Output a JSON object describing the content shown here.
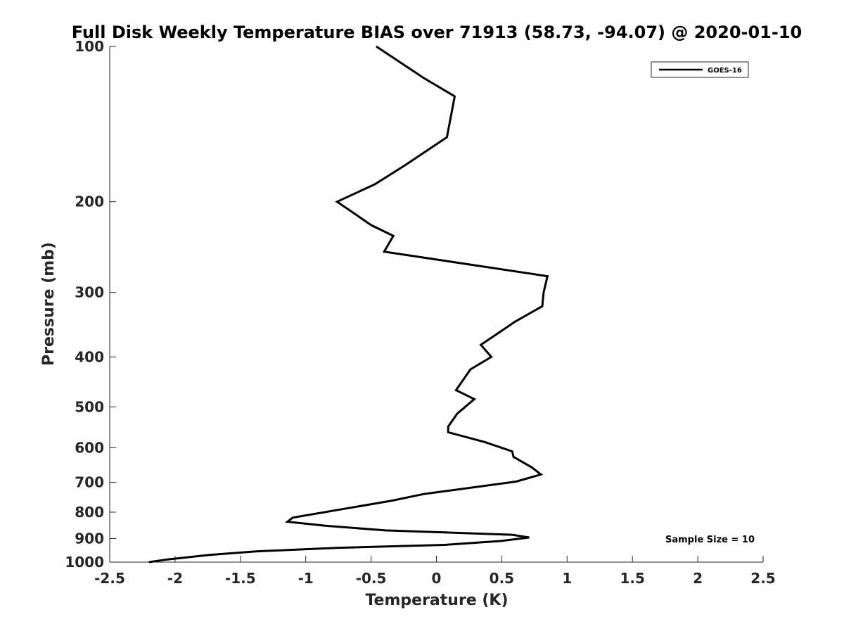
{
  "chart_data": {
    "type": "line",
    "title": "Full Disk Weekly Temperature BIAS over 71913 (58.73, -94.07) @ 2020-01-10",
    "xlabel": "Temperature (K)",
    "ylabel": "Pressure (mb)",
    "xlim": [
      -2.5,
      2.5
    ],
    "ylim": [
      100,
      1000
    ],
    "y_scale": "log",
    "y_reversed": true,
    "x_ticks": [
      "-2.5",
      "-2",
      "-1.5",
      "-1",
      "-0.5",
      "0",
      "0.5",
      "1",
      "1.5",
      "2",
      "2.5"
    ],
    "x_tick_values": [
      -2.5,
      -2,
      -1.5,
      -1,
      -0.5,
      0,
      0.5,
      1,
      1.5,
      2,
      2.5
    ],
    "y_ticks": [
      "100",
      "200",
      "300",
      "400",
      "500",
      "600",
      "700",
      "800",
      "900",
      "1000"
    ],
    "y_tick_values": [
      100,
      200,
      300,
      400,
      500,
      600,
      700,
      800,
      900,
      1000
    ],
    "grid": false,
    "legend_position": "top-right",
    "series": [
      {
        "name": "GOES-16",
        "color": "#000000",
        "points": [
          {
            "x": -0.46,
            "y": 100
          },
          {
            "x": -0.1,
            "y": 115
          },
          {
            "x": 0.14,
            "y": 125
          },
          {
            "x": 0.08,
            "y": 150
          },
          {
            "x": -0.24,
            "y": 170
          },
          {
            "x": -0.47,
            "y": 185
          },
          {
            "x": -0.76,
            "y": 200
          },
          {
            "x": -0.5,
            "y": 222
          },
          {
            "x": -0.33,
            "y": 233
          },
          {
            "x": -0.4,
            "y": 250
          },
          {
            "x": 0.85,
            "y": 279
          },
          {
            "x": 0.82,
            "y": 300
          },
          {
            "x": 0.81,
            "y": 319
          },
          {
            "x": 0.6,
            "y": 342
          },
          {
            "x": 0.45,
            "y": 363
          },
          {
            "x": 0.34,
            "y": 379
          },
          {
            "x": 0.42,
            "y": 400
          },
          {
            "x": 0.26,
            "y": 423
          },
          {
            "x": 0.15,
            "y": 464
          },
          {
            "x": 0.29,
            "y": 483
          },
          {
            "x": 0.16,
            "y": 515
          },
          {
            "x": 0.09,
            "y": 546
          },
          {
            "x": 0.09,
            "y": 560
          },
          {
            "x": 0.37,
            "y": 585
          },
          {
            "x": 0.58,
            "y": 610
          },
          {
            "x": 0.59,
            "y": 625
          },
          {
            "x": 0.73,
            "y": 655
          },
          {
            "x": 0.8,
            "y": 676
          },
          {
            "x": 0.61,
            "y": 698
          },
          {
            "x": -0.1,
            "y": 738
          },
          {
            "x": -0.34,
            "y": 760
          },
          {
            "x": -1.1,
            "y": 820
          },
          {
            "x": -1.14,
            "y": 835
          },
          {
            "x": -0.85,
            "y": 850
          },
          {
            "x": -0.39,
            "y": 868
          },
          {
            "x": 0.58,
            "y": 885
          },
          {
            "x": 0.71,
            "y": 896
          },
          {
            "x": 0.49,
            "y": 910
          },
          {
            "x": 0.06,
            "y": 926
          },
          {
            "x": -0.75,
            "y": 938
          },
          {
            "x": -1.38,
            "y": 953
          },
          {
            "x": -1.73,
            "y": 968
          },
          {
            "x": -2.06,
            "y": 988
          },
          {
            "x": -2.2,
            "y": 1000
          }
        ]
      }
    ],
    "annotations": [
      "Sample Size = 10"
    ]
  }
}
